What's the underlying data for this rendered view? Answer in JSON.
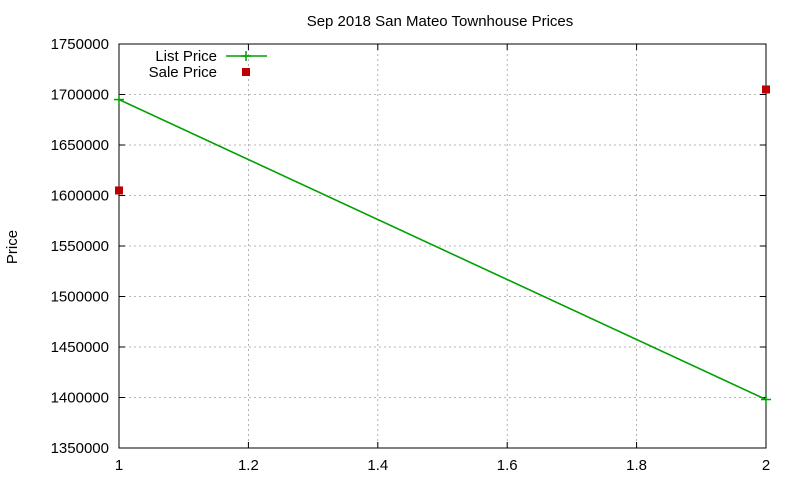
{
  "chart_data": {
    "type": "line",
    "title": "Sep 2018 San Mateo Townhouse Prices",
    "xlabel": "",
    "ylabel": "Price",
    "xlim": [
      1,
      2
    ],
    "ylim": [
      1350000,
      1750000
    ],
    "x_ticks": [
      1,
      1.2,
      1.4,
      1.6,
      1.8,
      2
    ],
    "x_tick_labels": [
      "1",
      "1.2",
      "1.4",
      "1.6",
      "1.8",
      "2"
    ],
    "y_ticks": [
      1350000,
      1400000,
      1450000,
      1500000,
      1550000,
      1600000,
      1650000,
      1700000,
      1750000
    ],
    "y_tick_labels": [
      "1350000",
      "1400000",
      "1450000",
      "1500000",
      "1550000",
      "1600000",
      "1650000",
      "1700000",
      "1750000"
    ],
    "grid": true,
    "legend_position": "top-left",
    "series": [
      {
        "name": "List Price",
        "style": "linespoints",
        "color": "#00a000",
        "marker": "plus",
        "x": [
          1,
          2
        ],
        "y": [
          1695000,
          1398000
        ]
      },
      {
        "name": "Sale Price",
        "style": "points",
        "color": "#c00000",
        "marker": "square",
        "x": [
          1,
          2
        ],
        "y": [
          1605000,
          1705000
        ]
      }
    ]
  }
}
